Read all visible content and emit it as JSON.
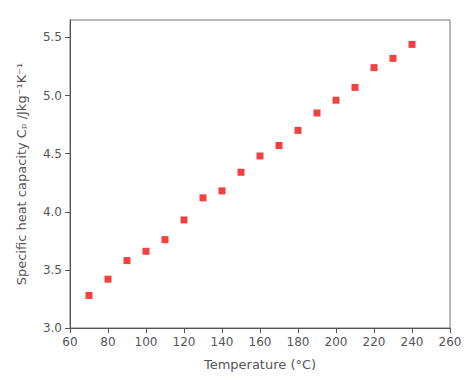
{
  "chart_data": {
    "type": "scatter",
    "x": [
      70,
      80,
      90,
      100,
      110,
      120,
      130,
      140,
      150,
      160,
      170,
      180,
      190,
      200,
      210,
      220,
      230,
      240
    ],
    "values": [
      3.28,
      3.42,
      3.58,
      3.66,
      3.76,
      3.93,
      4.12,
      4.18,
      4.34,
      4.48,
      4.57,
      4.7,
      4.85,
      4.96,
      5.07,
      5.24,
      5.32,
      5.44
    ],
    "color": "#ee1111",
    "marker": "square",
    "xlabel": "Temperature (°C)",
    "ylabel": "Specific heat capacity Cₚ /Jkg⁻¹K⁻¹",
    "xlim": [
      60,
      260
    ],
    "ylim": [
      3.0,
      5.65
    ],
    "xticks": [
      60,
      80,
      100,
      120,
      140,
      160,
      180,
      200,
      220,
      240,
      260
    ],
    "yticks": [
      {
        "value": 3.0,
        "label": "3.0"
      },
      3.5,
      {
        "value": 4.0,
        "label": "4.0"
      },
      4.5,
      {
        "value": 5.0,
        "label": "5.0"
      },
      5.5
    ],
    "grid": false
  }
}
